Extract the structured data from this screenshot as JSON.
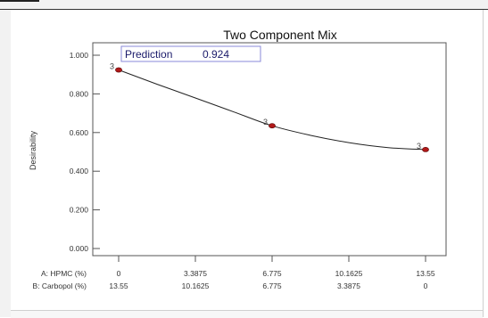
{
  "chart_data": {
    "type": "line",
    "title": "Two Component Mix",
    "ylabel": "Desirability",
    "ylim": [
      0,
      1.0
    ],
    "y_ticks": [
      "1.000",
      "0.800",
      "0.600",
      "0.400",
      "0.200",
      "0.000"
    ],
    "x_ticks": [
      0,
      3.3875,
      6.775,
      10.1625,
      13.55
    ],
    "x_rows": [
      {
        "label": "A: HPMC (%)",
        "ticks": [
          "0",
          "3.3875",
          "6.775",
          "10.1625",
          "13.55"
        ]
      },
      {
        "label": "B: Carbopol (%)",
        "ticks": [
          "13.55",
          "10.1625",
          "6.775",
          "3.3875",
          "0"
        ]
      }
    ],
    "series": [
      {
        "x": [
          0,
          1.7,
          3.3875,
          5.1,
          6.775,
          8.5,
          10.1625,
          11.9,
          13.55
        ],
        "y": [
          0.924,
          0.85,
          0.779,
          0.706,
          0.635,
          0.585,
          0.548,
          0.522,
          0.512
        ]
      }
    ],
    "points": [
      {
        "x": 0,
        "y": 0.924,
        "label": "3"
      },
      {
        "x": 6.775,
        "y": 0.635,
        "label": "3"
      },
      {
        "x": 13.55,
        "y": 0.512,
        "label": "3"
      }
    ],
    "prediction": {
      "label": "Prediction",
      "value": "0.924"
    },
    "colors": {
      "line": "#222222",
      "point": "#b01818",
      "pred_border": "#8a8ad8"
    }
  }
}
